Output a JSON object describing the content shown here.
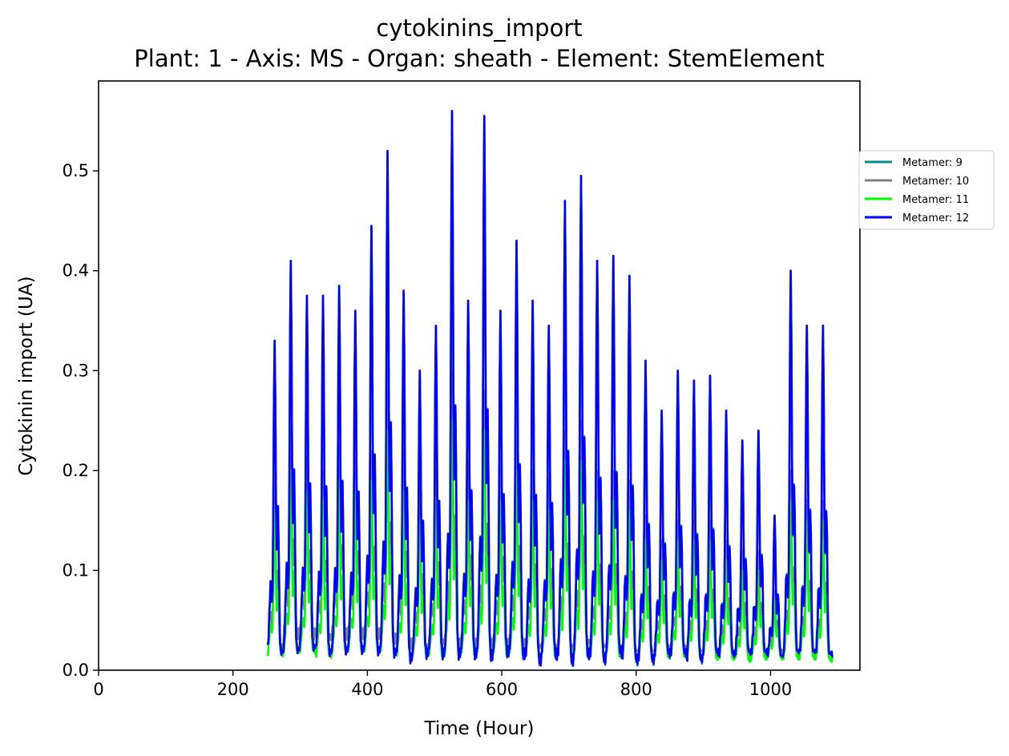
{
  "chart_data": {
    "type": "line",
    "title": "cytokinins_import",
    "subtitle": "Plant: 1 - Axis: MS - Organ: sheath - Element: StemElement",
    "xlabel": "Time (Hour)",
    "ylabel": "Cytokinin import (UA)",
    "xlim": [
      0,
      1133
    ],
    "ylim": [
      0,
      0.59
    ],
    "x_ticks": [
      0,
      200,
      400,
      600,
      800,
      1000
    ],
    "y_ticks": [
      0.0,
      0.1,
      0.2,
      0.3,
      0.4,
      0.5
    ],
    "y_tick_labels": [
      "0.0",
      "0.1",
      "0.2",
      "0.3",
      "0.4",
      "0.5"
    ],
    "grid": false,
    "legend_position": "right-outside-top",
    "x_start": 252,
    "x_end": 1092,
    "x_step": 24,
    "peak_hours": [
      262,
      286,
      310,
      334,
      358,
      382,
      406,
      430,
      454,
      478,
      502,
      526,
      550,
      574,
      598,
      622,
      646,
      670,
      694,
      718,
      742,
      766,
      790,
      814,
      838,
      862,
      886,
      910,
      934,
      958,
      982,
      1006,
      1030,
      1054,
      1078
    ],
    "series": [
      {
        "name": "Metamer: 9",
        "color": "#008b8b",
        "peaks": [
          0.33,
          0.41,
          0.375,
          0.375,
          0.385,
          0.36,
          0.445,
          0.52,
          0.38,
          0.3,
          0.345,
          0.56,
          0.37,
          0.555,
          0.36,
          0.43,
          0.37,
          0.345,
          0.47,
          0.495,
          0.41,
          0.415,
          0.395,
          0.31,
          0.26,
          0.3,
          0.29,
          0.295,
          0.26,
          0.23,
          0.24,
          0.155,
          0.4,
          0.345,
          0.345
        ],
        "troughs": [
          0.01,
          0.012,
          0.015,
          0.01,
          0.012,
          0.013,
          0.012,
          0.01,
          0.005,
          0.01,
          0.01,
          0.01,
          0.01,
          0.008,
          0.012,
          0.01,
          0.004,
          0.01,
          0.004,
          0.01,
          0.005,
          0.012,
          0.004,
          0.004,
          0.01,
          0.01,
          0.004,
          0.01,
          0.008,
          0.01,
          0.01,
          0.01,
          0.01,
          0.01,
          0.008
        ]
      },
      {
        "name": "Metamer: 10",
        "color": "#808080",
        "peaks": [
          0.19,
          0.24,
          0.215,
          0.2,
          0.225,
          0.21,
          0.22,
          0.28,
          0.22,
          0.18,
          0.2,
          0.3,
          0.21,
          0.28,
          0.205,
          0.23,
          0.2,
          0.19,
          0.24,
          0.25,
          0.2,
          0.2,
          0.19,
          0.155,
          0.13,
          0.15,
          0.15,
          0.15,
          0.13,
          0.12,
          0.12,
          0.08,
          0.2,
          0.17,
          0.17
        ],
        "troughs": [
          0.02,
          0.03,
          0.03,
          0.03,
          0.03,
          0.03,
          0.03,
          0.025,
          0.02,
          0.02,
          0.025,
          0.02,
          0.02,
          0.02,
          0.02,
          0.02,
          0.02,
          0.02,
          0.015,
          0.02,
          0.02,
          0.02,
          0.015,
          0.015,
          0.02,
          0.02,
          0.015,
          0.015,
          0.015,
          0.015,
          0.015,
          0.015,
          0.015,
          0.015,
          0.012
        ]
      },
      {
        "name": "Metamer: 11",
        "color": "#00ff00",
        "peaks": [
          0.16,
          0.2,
          0.18,
          0.17,
          0.19,
          0.18,
          0.19,
          0.24,
          0.18,
          0.15,
          0.17,
          0.25,
          0.17,
          0.24,
          0.17,
          0.2,
          0.17,
          0.16,
          0.21,
          0.21,
          0.17,
          0.17,
          0.16,
          0.13,
          0.11,
          0.13,
          0.13,
          0.13,
          0.11,
          0.1,
          0.1,
          0.07,
          0.17,
          0.15,
          0.15
        ],
        "troughs": [
          0.012,
          0.015,
          0.015,
          0.01,
          0.015,
          0.015,
          0.015,
          0.012,
          0.01,
          0.012,
          0.01,
          0.012,
          0.012,
          0.01,
          0.012,
          0.012,
          0.01,
          0.012,
          0.01,
          0.012,
          0.012,
          0.012,
          0.01,
          0.01,
          0.012,
          0.012,
          0.01,
          0.01,
          0.01,
          0.008,
          0.01,
          0.01,
          0.01,
          0.01,
          0.008
        ]
      },
      {
        "name": "Metamer: 12",
        "color": "#0000ff",
        "peaks": [
          0.33,
          0.41,
          0.375,
          0.375,
          0.385,
          0.36,
          0.445,
          0.52,
          0.38,
          0.3,
          0.345,
          0.56,
          0.37,
          0.555,
          0.36,
          0.43,
          0.37,
          0.345,
          0.47,
          0.495,
          0.41,
          0.415,
          0.395,
          0.31,
          0.26,
          0.3,
          0.29,
          0.295,
          0.26,
          0.23,
          0.24,
          0.155,
          0.4,
          0.345,
          0.345
        ],
        "troughs": [
          0.01,
          0.012,
          0.015,
          0.01,
          0.012,
          0.013,
          0.012,
          0.01,
          0.005,
          0.01,
          0.01,
          0.01,
          0.01,
          0.008,
          0.012,
          0.01,
          0.004,
          0.01,
          0.004,
          0.01,
          0.005,
          0.012,
          0.004,
          0.004,
          0.01,
          0.01,
          0.004,
          0.01,
          0.008,
          0.01,
          0.01,
          0.01,
          0.01,
          0.01,
          0.008
        ]
      }
    ]
  }
}
